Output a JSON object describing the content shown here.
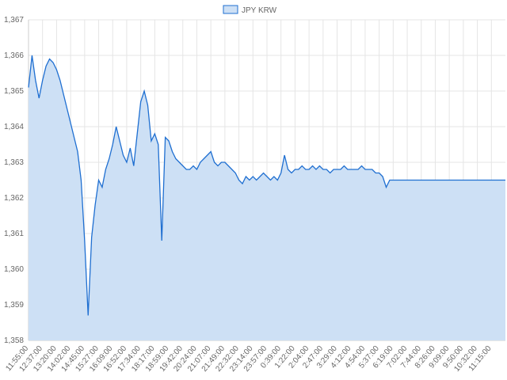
{
  "chart_data": {
    "type": "line",
    "categories": [
      "11:55:00",
      null,
      null,
      null,
      "12:37:00",
      null,
      null,
      null,
      "13:20:00",
      null,
      null,
      null,
      "14:02:00",
      null,
      null,
      null,
      "14:45:00",
      null,
      null,
      null,
      "15:27:00",
      null,
      null,
      null,
      "16:09:00",
      null,
      null,
      null,
      "16:52:00",
      null,
      null,
      null,
      "17:34:00",
      null,
      null,
      null,
      "18:17:00",
      null,
      null,
      null,
      "18:59:00",
      null,
      null,
      null,
      "19:42:00",
      null,
      null,
      null,
      "20:24:00",
      null,
      null,
      null,
      "21:07:00",
      null,
      null,
      null,
      "21:49:00",
      null,
      null,
      null,
      "22:32:00",
      null,
      null,
      null,
      "23:14:00",
      null,
      null,
      null,
      "23:57:00",
      null,
      null,
      null,
      "0:39:00",
      null,
      null,
      null,
      "1:22:00",
      null,
      null,
      null,
      "2:04:00",
      null,
      null,
      null,
      "2:47:00",
      null,
      null,
      null,
      "3:29:00",
      null,
      null,
      null,
      "4:12:00",
      null,
      null,
      null,
      "4:54:00",
      null,
      null,
      null,
      "5:37:00",
      null,
      null,
      null,
      "6:19:00",
      null,
      null,
      null,
      "7:02:00",
      null,
      null,
      null,
      "7:44:00",
      null,
      null,
      null,
      "8:26:00",
      null,
      null,
      null,
      "9:09:00",
      null,
      null,
      null,
      "9:50:00",
      null,
      null,
      null,
      "10:32:00",
      null,
      null,
      null,
      "11:15:00",
      null,
      null,
      null,
      null
    ],
    "series": [
      {
        "name": "JPY KRW",
        "color": "#1f6fd1",
        "fill": "#cde0f5",
        "values": [
          1365.1,
          1366.0,
          1365.3,
          1364.8,
          1365.3,
          1365.7,
          1365.9,
          1365.8,
          1365.6,
          1365.3,
          1364.9,
          1364.5,
          1364.1,
          1363.7,
          1363.3,
          1362.5,
          1360.8,
          1358.7,
          1360.9,
          1361.8,
          1362.5,
          1362.3,
          1362.8,
          1363.1,
          1363.5,
          1364.0,
          1363.6,
          1363.2,
          1363.0,
          1363.4,
          1362.9,
          1363.8,
          1364.7,
          1365.0,
          1364.6,
          1363.6,
          1363.8,
          1363.5,
          1360.8,
          1363.7,
          1363.6,
          1363.3,
          1363.1,
          1363.0,
          1362.9,
          1362.8,
          1362.8,
          1362.9,
          1362.8,
          1363.0,
          1363.1,
          1363.2,
          1363.3,
          1363.0,
          1362.9,
          1363.0,
          1363.0,
          1362.9,
          1362.8,
          1362.7,
          1362.5,
          1362.4,
          1362.6,
          1362.5,
          1362.6,
          1362.5,
          1362.6,
          1362.7,
          1362.6,
          1362.5,
          1362.6,
          1362.5,
          1362.7,
          1363.2,
          1362.8,
          1362.7,
          1362.8,
          1362.8,
          1362.9,
          1362.8,
          1362.8,
          1362.9,
          1362.8,
          1362.9,
          1362.8,
          1362.8,
          1362.7,
          1362.8,
          1362.8,
          1362.8,
          1362.9,
          1362.8,
          1362.8,
          1362.8,
          1362.8,
          1362.9,
          1362.8,
          1362.8,
          1362.8,
          1362.7,
          1362.7,
          1362.6,
          1362.3,
          1362.5,
          1362.5,
          1362.5,
          1362.5,
          1362.5,
          1362.5,
          1362.5,
          1362.5,
          1362.5,
          1362.5,
          1362.5,
          1362.5,
          1362.5,
          1362.5,
          1362.5,
          1362.5,
          1362.5,
          1362.5,
          1362.5,
          1362.5,
          1362.5,
          1362.5,
          1362.5,
          1362.5,
          1362.5,
          1362.5,
          1362.5,
          1362.5,
          1362.5,
          1362.5,
          1362.5,
          1362.5,
          1362.5,
          1362.5
        ]
      }
    ],
    "ylim": [
      1358,
      1367
    ],
    "yticks": [
      {
        "value": 1358,
        "label": "1,358"
      },
      {
        "value": 1359,
        "label": "1,359"
      },
      {
        "value": 1360,
        "label": "1,360"
      },
      {
        "value": 1361,
        "label": "1,361"
      },
      {
        "value": 1362,
        "label": "1,362"
      },
      {
        "value": 1363,
        "label": "1,363"
      },
      {
        "value": 1364,
        "label": "1,364"
      },
      {
        "value": 1365,
        "label": "1,365"
      },
      {
        "value": 1366,
        "label": "1,366"
      },
      {
        "value": 1367,
        "label": "1,367"
      }
    ],
    "grid": true,
    "legend": "top"
  }
}
